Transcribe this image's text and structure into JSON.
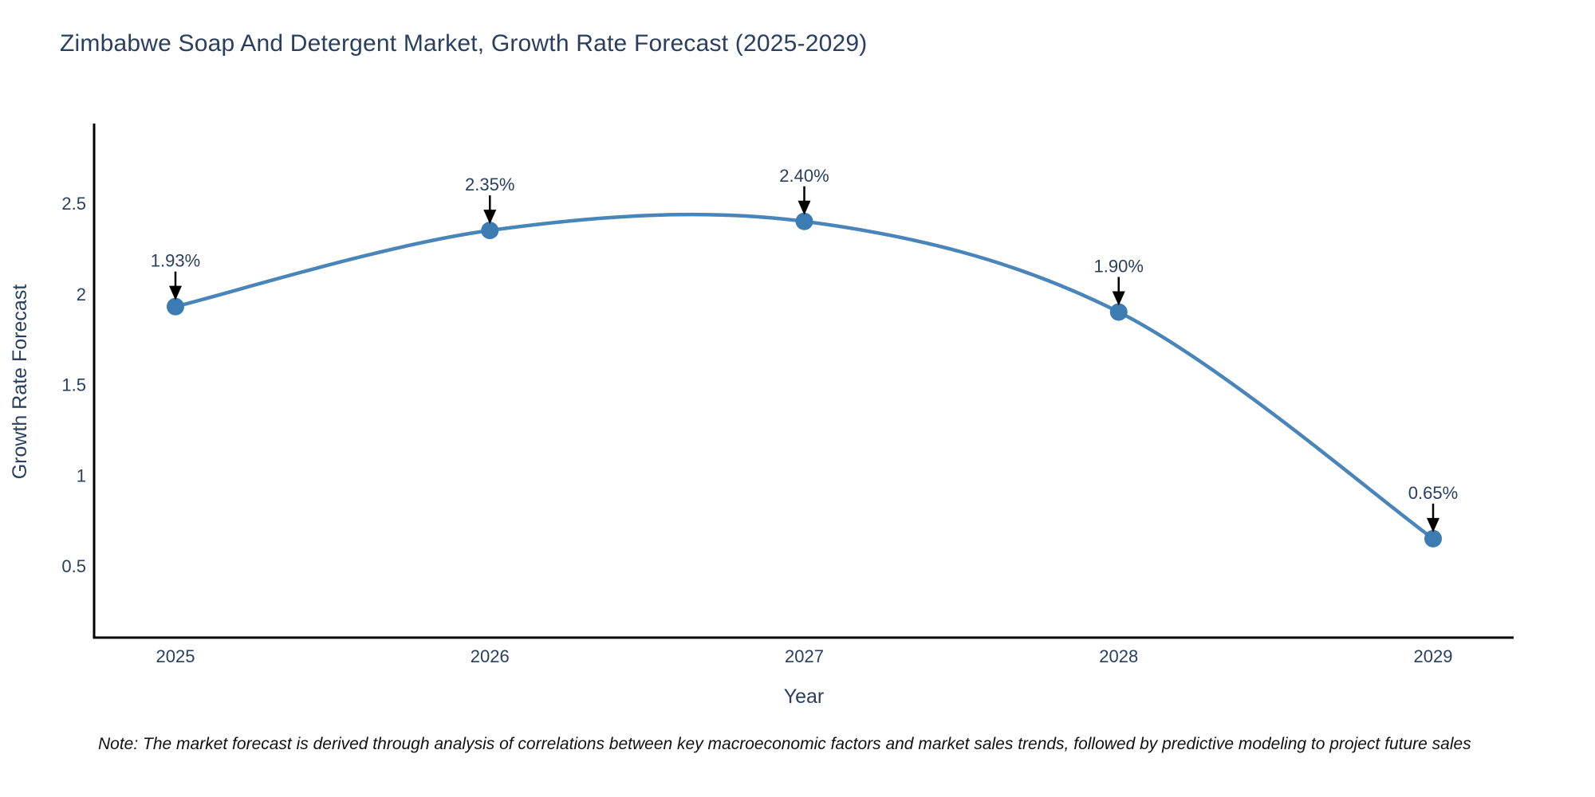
{
  "title": "Zimbabwe Soap And Detergent Market, Growth Rate Forecast (2025-2029)",
  "note": "Note: The market forecast is derived through analysis of correlations between key macroeconomic factors and market sales trends, followed by predictive modeling to project future sales",
  "colors": {
    "text": "#2a3f5f",
    "line": "#4a85ba",
    "marker": "#3d7cb3",
    "axis": "#000000",
    "arrow": "#000000",
    "note_text": "#111111",
    "background": "#ffffff"
  },
  "chart_data": {
    "type": "line",
    "line_shape": "spline",
    "title": "Zimbabwe Soap And Detergent Market, Growth Rate Forecast (2025-2029)",
    "xlabel": "Year",
    "ylabel": "Growth Rate Forecast",
    "x": [
      2025,
      2026,
      2027,
      2028,
      2029
    ],
    "values": [
      1.93,
      2.35,
      2.4,
      1.9,
      0.65
    ],
    "series": [
      {
        "name": "Growth Rate Forecast",
        "values": [
          1.93,
          2.35,
          2.4,
          1.9,
          0.65
        ]
      }
    ],
    "point_labels": [
      "1.93%",
      "2.35%",
      "2.40%",
      "1.90%",
      "0.65%"
    ],
    "annotations": [
      {
        "x": 2025,
        "y": 1.93,
        "text": "1.93%",
        "arrow": "down"
      },
      {
        "x": 2026,
        "y": 2.35,
        "text": "2.35%",
        "arrow": "down"
      },
      {
        "x": 2027,
        "y": 2.4,
        "text": "2.40%",
        "arrow": "down"
      },
      {
        "x": 2028,
        "y": 1.9,
        "text": "1.90%",
        "arrow": "down"
      },
      {
        "x": 2029,
        "y": 0.65,
        "text": "0.65%",
        "arrow": "down"
      }
    ],
    "x_tick_labels": [
      "2025",
      "2026",
      "2027",
      "2028",
      "2029"
    ],
    "y_tick_values": [
      0.5,
      1,
      1.5,
      2,
      2.5
    ],
    "y_tick_labels": [
      "0.5",
      "1",
      "1.5",
      "2",
      "2.5"
    ],
    "ylim": [
      0.1,
      2.94
    ],
    "grid": false,
    "legend": "none",
    "markers": true
  }
}
